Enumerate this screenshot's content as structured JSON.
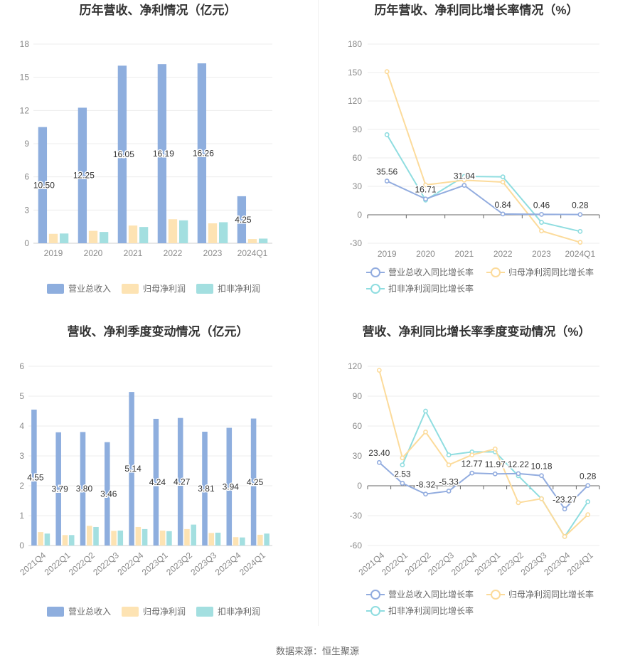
{
  "source": "数据来源：恒生聚源",
  "colors": {
    "revenue": "#8eaede",
    "net": "#fde3b3",
    "deducted": "#a3dfe0",
    "revenue_line": "#92acdf",
    "net_line": "#fcdb9b",
    "deducted_line": "#8fdde0"
  },
  "chart_data": [
    {
      "id": "p1",
      "type": "bar",
      "title": "历年营收、净利情况（亿元）",
      "categories": [
        "2019",
        "2020",
        "2021",
        "2022",
        "2023",
        "2024Q1"
      ],
      "series": [
        {
          "name": "营业总收入",
          "values": [
            10.5,
            12.25,
            16.05,
            16.19,
            16.26,
            4.25
          ],
          "labels": [
            "10.50",
            "12.25",
            "16.05",
            "16.19",
            "16.26",
            "4.25"
          ]
        },
        {
          "name": "归母净利润",
          "values": [
            0.85,
            1.12,
            1.6,
            2.17,
            1.8,
            0.38
          ]
        },
        {
          "name": "扣非净利润",
          "values": [
            0.88,
            1.02,
            1.47,
            2.07,
            1.9,
            0.42
          ]
        }
      ],
      "yticks": [
        "0",
        "3",
        "6",
        "9",
        "12",
        "15",
        "18"
      ],
      "ylim": [
        0,
        18
      ]
    },
    {
      "id": "p2",
      "type": "line",
      "title": "历年营收、净利同比增长率情况（%）",
      "categories": [
        "2019",
        "2020",
        "2021",
        "2022",
        "2023",
        "2024Q1"
      ],
      "series": [
        {
          "name": "营业总收入同比增长率",
          "values": [
            35.56,
            16.71,
            31.04,
            0.84,
            0.46,
            0.28
          ],
          "labels": [
            "35.56",
            "16.71",
            "31.04",
            "0.84",
            "0.46",
            "0.28"
          ]
        },
        {
          "name": "归母净利润同比增长率",
          "values": [
            151,
            31.5,
            36.5,
            34.5,
            -17,
            -29
          ]
        },
        {
          "name": "扣非净利润同比增长率",
          "values": [
            84.5,
            15.5,
            40.5,
            40,
            -8,
            -17.5
          ]
        }
      ],
      "yticks": [
        "-30",
        "0",
        "30",
        "60",
        "90",
        "120",
        "150",
        "180"
      ],
      "ylim": [
        -30,
        180
      ]
    },
    {
      "id": "p3",
      "type": "bar",
      "title": "营收、净利季度变动情况（亿元）",
      "categories": [
        "2021Q4",
        "2022Q1",
        "2022Q2",
        "2022Q3",
        "2022Q4",
        "2023Q1",
        "2023Q2",
        "2023Q3",
        "2023Q4",
        "2024Q1"
      ],
      "series": [
        {
          "name": "营业总收入",
          "values": [
            4.55,
            3.79,
            3.8,
            3.46,
            5.14,
            4.24,
            4.27,
            3.81,
            3.94,
            4.25
          ],
          "labels": [
            "4.55",
            "3.79",
            "3.80",
            "3.46",
            "5.14",
            "4.24",
            "4.27",
            "3.81",
            "3.94",
            "4.25"
          ]
        },
        {
          "name": "归母净利润",
          "values": [
            0.45,
            0.35,
            0.66,
            0.49,
            0.62,
            0.5,
            0.55,
            0.42,
            0.28,
            0.36
          ]
        },
        {
          "name": "扣非净利润",
          "values": [
            0.4,
            0.35,
            0.62,
            0.5,
            0.55,
            0.48,
            0.7,
            0.43,
            0.27,
            0.4
          ]
        }
      ],
      "yticks": [
        "0",
        "1",
        "2",
        "3",
        "4",
        "5",
        "6"
      ],
      "ylim": [
        0,
        6
      ]
    },
    {
      "id": "p4",
      "type": "line",
      "title": "营收、净利同比增长率季度变动情况（%）",
      "categories": [
        "2021Q4",
        "2022Q1",
        "2022Q2",
        "2022Q3",
        "2022Q4",
        "2023Q1",
        "2023Q2",
        "2023Q3",
        "2023Q4",
        "2024Q1"
      ],
      "series": [
        {
          "name": "营业总收入同比增长率",
          "values": [
            23.4,
            2.53,
            -8.32,
            -5.33,
            12.77,
            11.97,
            12.22,
            10.18,
            -23.27,
            0.28
          ],
          "labels": [
            "23.40",
            "2.53",
            "-8.32",
            "-5.33",
            "12.77",
            "11.97",
            "12.22",
            "10.18",
            "-23.27",
            "0.28"
          ]
        },
        {
          "name": "归母净利润同比增长率",
          "values": [
            116,
            28,
            54,
            21,
            31,
            37,
            -17,
            -13,
            -51,
            -29
          ]
        },
        {
          "name": "扣非净利润同比增长率",
          "values": [
            null,
            21,
            75,
            31,
            34,
            34,
            10,
            -13,
            -51,
            -16
          ]
        }
      ],
      "yticks": [
        "-60",
        "-30",
        "0",
        "30",
        "60",
        "90",
        "120"
      ],
      "ylim": [
        -60,
        120
      ]
    }
  ]
}
